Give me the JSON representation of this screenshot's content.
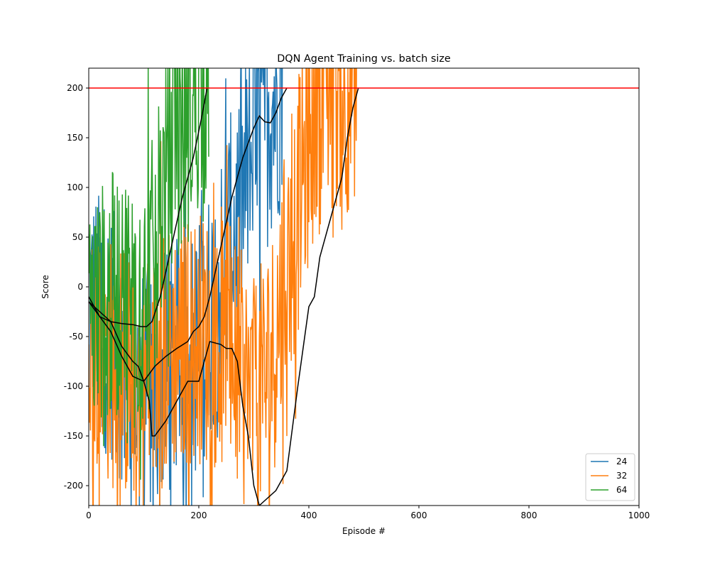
{
  "chart_data": {
    "type": "line",
    "title": "DQN Agent Training vs. batch size",
    "xlabel": "Episode #",
    "ylabel": "Score",
    "xlim": [
      0,
      1000
    ],
    "ylim": [
      -220,
      220
    ],
    "xticks": [
      0,
      200,
      400,
      600,
      800,
      1000
    ],
    "yticks": [
      -200,
      -150,
      -100,
      -50,
      0,
      50,
      100,
      150,
      200
    ],
    "grid": false,
    "legend_position": "bottom-right",
    "target_score": 200,
    "target_color": "#ff0000",
    "series": [
      {
        "name": "24",
        "color": "#1f77b4",
        "episodes": 352,
        "style": "noisy",
        "raw_mean_points": [
          [
            0,
            -20
          ],
          [
            40,
            -45
          ],
          [
            80,
            -95
          ],
          [
            110,
            -110
          ],
          [
            150,
            -85
          ],
          [
            200,
            -60
          ],
          [
            240,
            10
          ],
          [
            280,
            90
          ],
          [
            310,
            160
          ],
          [
            340,
            190
          ],
          [
            352,
            205
          ]
        ],
        "moving_average": [
          [
            0,
            -10
          ],
          [
            20,
            -30
          ],
          [
            40,
            -45
          ],
          [
            60,
            -70
          ],
          [
            80,
            -90
          ],
          [
            100,
            -95
          ],
          [
            120,
            -80
          ],
          [
            140,
            -70
          ],
          [
            160,
            -62
          ],
          [
            180,
            -55
          ],
          [
            190,
            -45
          ],
          [
            200,
            -40
          ],
          [
            210,
            -30
          ],
          [
            220,
            -10
          ],
          [
            240,
            40
          ],
          [
            260,
            90
          ],
          [
            280,
            130
          ],
          [
            300,
            160
          ],
          [
            310,
            172
          ],
          [
            320,
            166
          ],
          [
            330,
            165
          ],
          [
            340,
            175
          ],
          [
            350,
            190
          ],
          [
            360,
            200
          ]
        ]
      },
      {
        "name": "32",
        "color": "#ff7f0e",
        "episodes": 487,
        "style": "noisy",
        "raw_mean_points": [
          [
            0,
            -60
          ],
          [
            50,
            -80
          ],
          [
            100,
            -100
          ],
          [
            150,
            -60
          ],
          [
            200,
            -50
          ],
          [
            250,
            -60
          ],
          [
            300,
            -120
          ],
          [
            330,
            -80
          ],
          [
            360,
            20
          ],
          [
            380,
            80
          ],
          [
            400,
            150
          ],
          [
            430,
            200
          ],
          [
            460,
            200
          ],
          [
            487,
            205
          ]
        ],
        "moving_average": [
          [
            0,
            -15
          ],
          [
            20,
            -25
          ],
          [
            40,
            -35
          ],
          [
            60,
            -60
          ],
          [
            80,
            -75
          ],
          [
            90,
            -80
          ],
          [
            100,
            -95
          ],
          [
            110,
            -115
          ],
          [
            115,
            -150
          ],
          [
            120,
            -150
          ],
          [
            140,
            -135
          ],
          [
            160,
            -115
          ],
          [
            180,
            -95
          ],
          [
            200,
            -95
          ],
          [
            210,
            -75
          ],
          [
            220,
            -55
          ],
          [
            240,
            -58
          ],
          [
            250,
            -62
          ],
          [
            260,
            -62
          ],
          [
            270,
            -75
          ],
          [
            280,
            -120
          ],
          [
            290,
            -150
          ],
          [
            300,
            -200
          ],
          [
            310,
            -220
          ],
          [
            320,
            -215
          ],
          [
            340,
            -205
          ],
          [
            360,
            -185
          ],
          [
            380,
            -100
          ],
          [
            390,
            -60
          ],
          [
            400,
            -20
          ],
          [
            410,
            -10
          ],
          [
            420,
            30
          ],
          [
            440,
            70
          ],
          [
            460,
            110
          ],
          [
            470,
            150
          ],
          [
            480,
            180
          ],
          [
            490,
            200
          ]
        ]
      },
      {
        "name": "64",
        "color": "#2ca02c",
        "episodes": 218,
        "style": "noisy",
        "raw_mean_points": [
          [
            0,
            -30
          ],
          [
            30,
            -20
          ],
          [
            60,
            0
          ],
          [
            90,
            -20
          ],
          [
            110,
            0
          ],
          [
            130,
            80
          ],
          [
            150,
            130
          ],
          [
            180,
            170
          ],
          [
            200,
            200
          ],
          [
            218,
            205
          ]
        ],
        "moving_average": [
          [
            0,
            -15
          ],
          [
            20,
            -30
          ],
          [
            40,
            -35
          ],
          [
            60,
            -37
          ],
          [
            80,
            -38
          ],
          [
            95,
            -40
          ],
          [
            105,
            -40
          ],
          [
            115,
            -35
          ],
          [
            130,
            -10
          ],
          [
            150,
            40
          ],
          [
            170,
            90
          ],
          [
            190,
            130
          ],
          [
            205,
            170
          ],
          [
            215,
            200
          ]
        ]
      }
    ]
  }
}
